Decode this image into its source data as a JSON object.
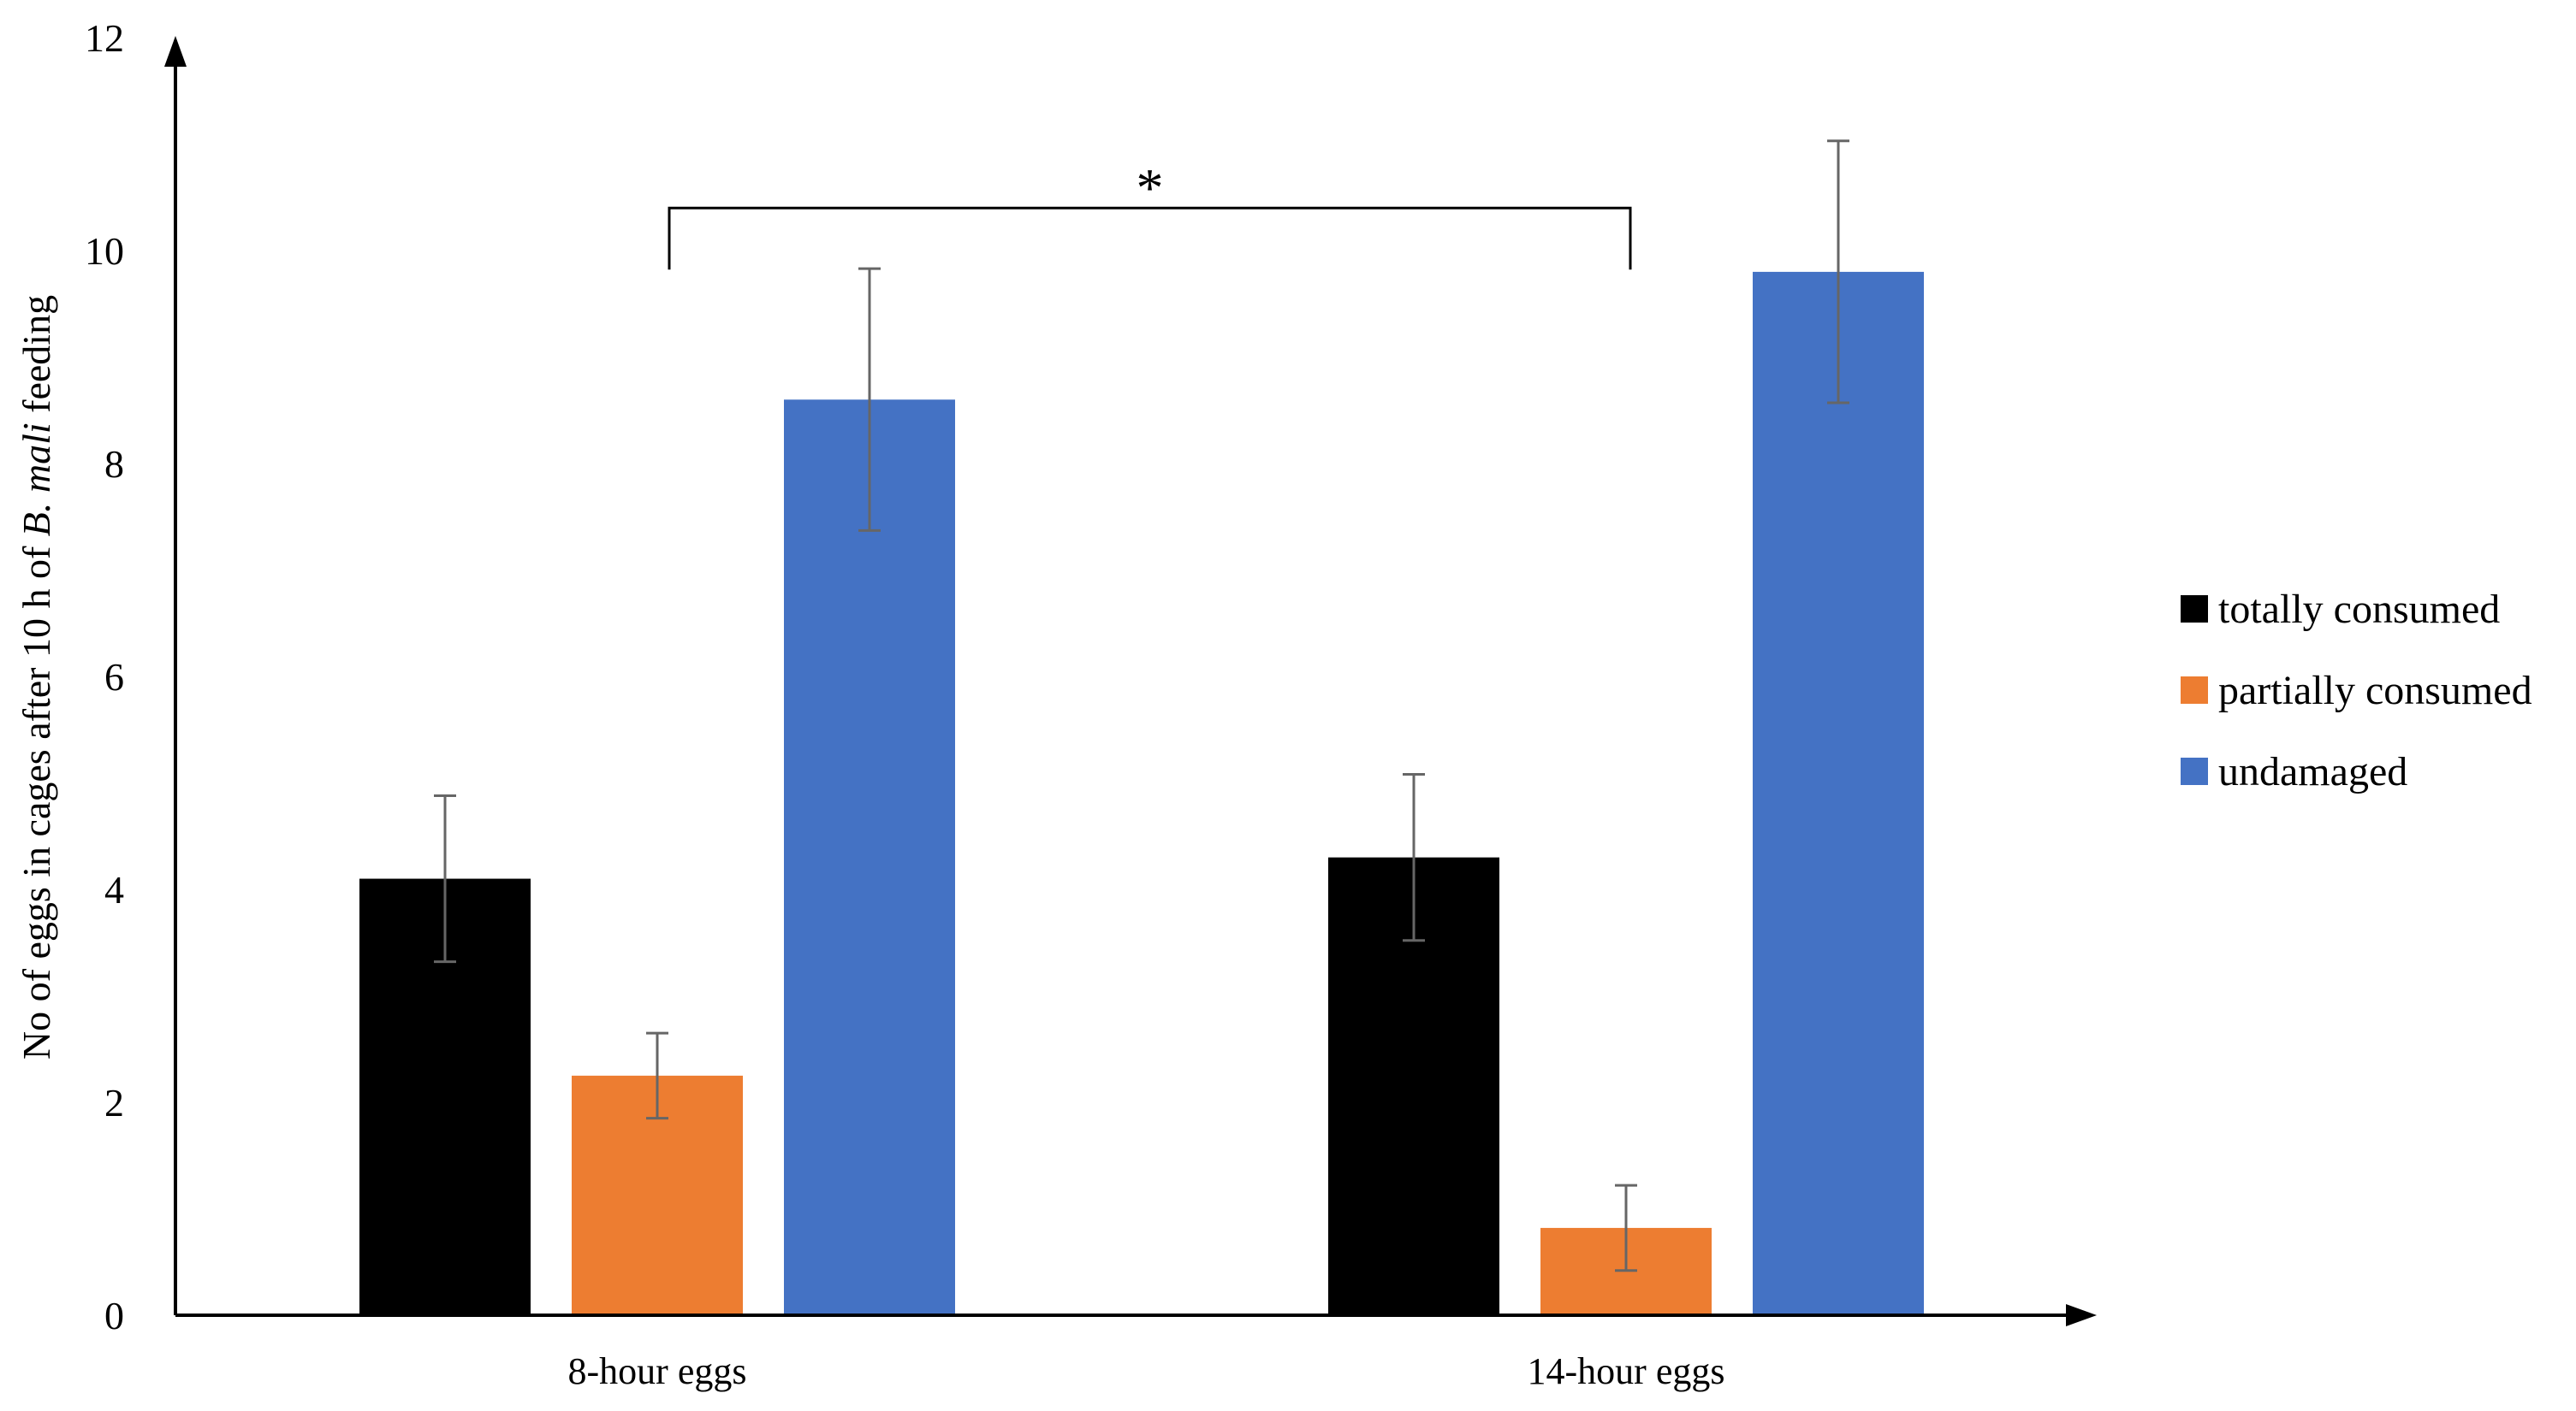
{
  "chart_data": {
    "type": "bar",
    "title": "",
    "xlabel": "",
    "ylabel_parts": {
      "prefix": "No of eggs in cages after 10 h of ",
      "species": "B. mali",
      "suffix": " feeding"
    },
    "ylim": [
      0,
      12
    ],
    "yticks": [
      0,
      2,
      4,
      6,
      8,
      10,
      12
    ],
    "categories": [
      "8-hour eggs",
      "14-hour eggs"
    ],
    "series": [
      {
        "name": "totally consumed",
        "color": "#000000",
        "values": [
          4.1,
          4.3
        ],
        "errors": [
          0.78,
          0.78
        ]
      },
      {
        "name": "partially consumed",
        "color": "#ED7D31",
        "values": [
          2.25,
          0.82
        ],
        "errors": [
          0.4,
          0.4
        ]
      },
      {
        "name": "undamaged",
        "color": "#4472C4",
        "values": [
          8.6,
          9.8
        ],
        "errors": [
          1.23,
          1.23
        ]
      }
    ],
    "annotation": {
      "text": "*",
      "type": "significance-bracket",
      "between": [
        "8-hour eggs",
        "14-hour eggs"
      ],
      "bracket_y": 10.4
    },
    "grid": false,
    "legend_position": "right"
  }
}
